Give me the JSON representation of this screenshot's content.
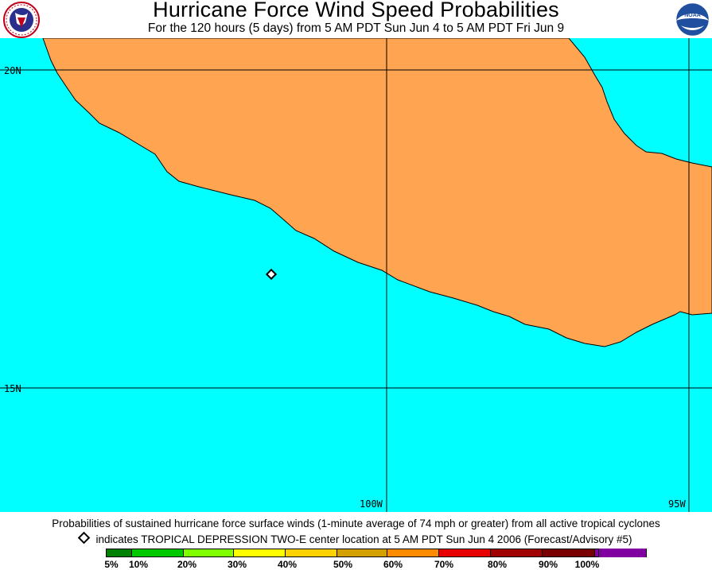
{
  "header": {
    "title": "Hurricane Force Wind Speed Probabilities",
    "subtitle": "For the 120 hours (5 days) from 5 AM PDT Sun Jun 4 to 5 AM PDT Fri Jun 9",
    "left_logo": "national-weather-service-logo",
    "right_logo": "noaa-logo"
  },
  "map": {
    "ocean_color": "#00FFFF",
    "land_color": "#FFA552",
    "lat_labels": {
      "n20": "20N",
      "n15": "15N"
    },
    "lon_labels": {
      "w100": "100W",
      "w95": "95W"
    },
    "storm_marker": "diamond"
  },
  "footer": {
    "description": "Probabilities of sustained hurricane force surface winds (1-minute average of 74 mph or greater) from all active tropical cyclones",
    "storm_note": "indicates TROPICAL DEPRESSION TWO-E center location at 5 AM PDT Sun Jun 4 2006 (Forecast/Advisory #5)",
    "scale": [
      {
        "label": "5%",
        "color": "#008000"
      },
      {
        "label": "10%",
        "color": "#00C800"
      },
      {
        "label": "20%",
        "color": "#80FF00"
      },
      {
        "label": "30%",
        "color": "#FFFF00"
      },
      {
        "label": "40%",
        "color": "#FFD200"
      },
      {
        "label": "50%",
        "color": "#D2A000"
      },
      {
        "label": "60%",
        "color": "#FF8C00"
      },
      {
        "label": "70%",
        "color": "#E60000"
      },
      {
        "label": "80%",
        "color": "#A00000"
      },
      {
        "label": "90%",
        "color": "#780000"
      },
      {
        "label": "100%",
        "color": "#8000A0"
      }
    ]
  }
}
